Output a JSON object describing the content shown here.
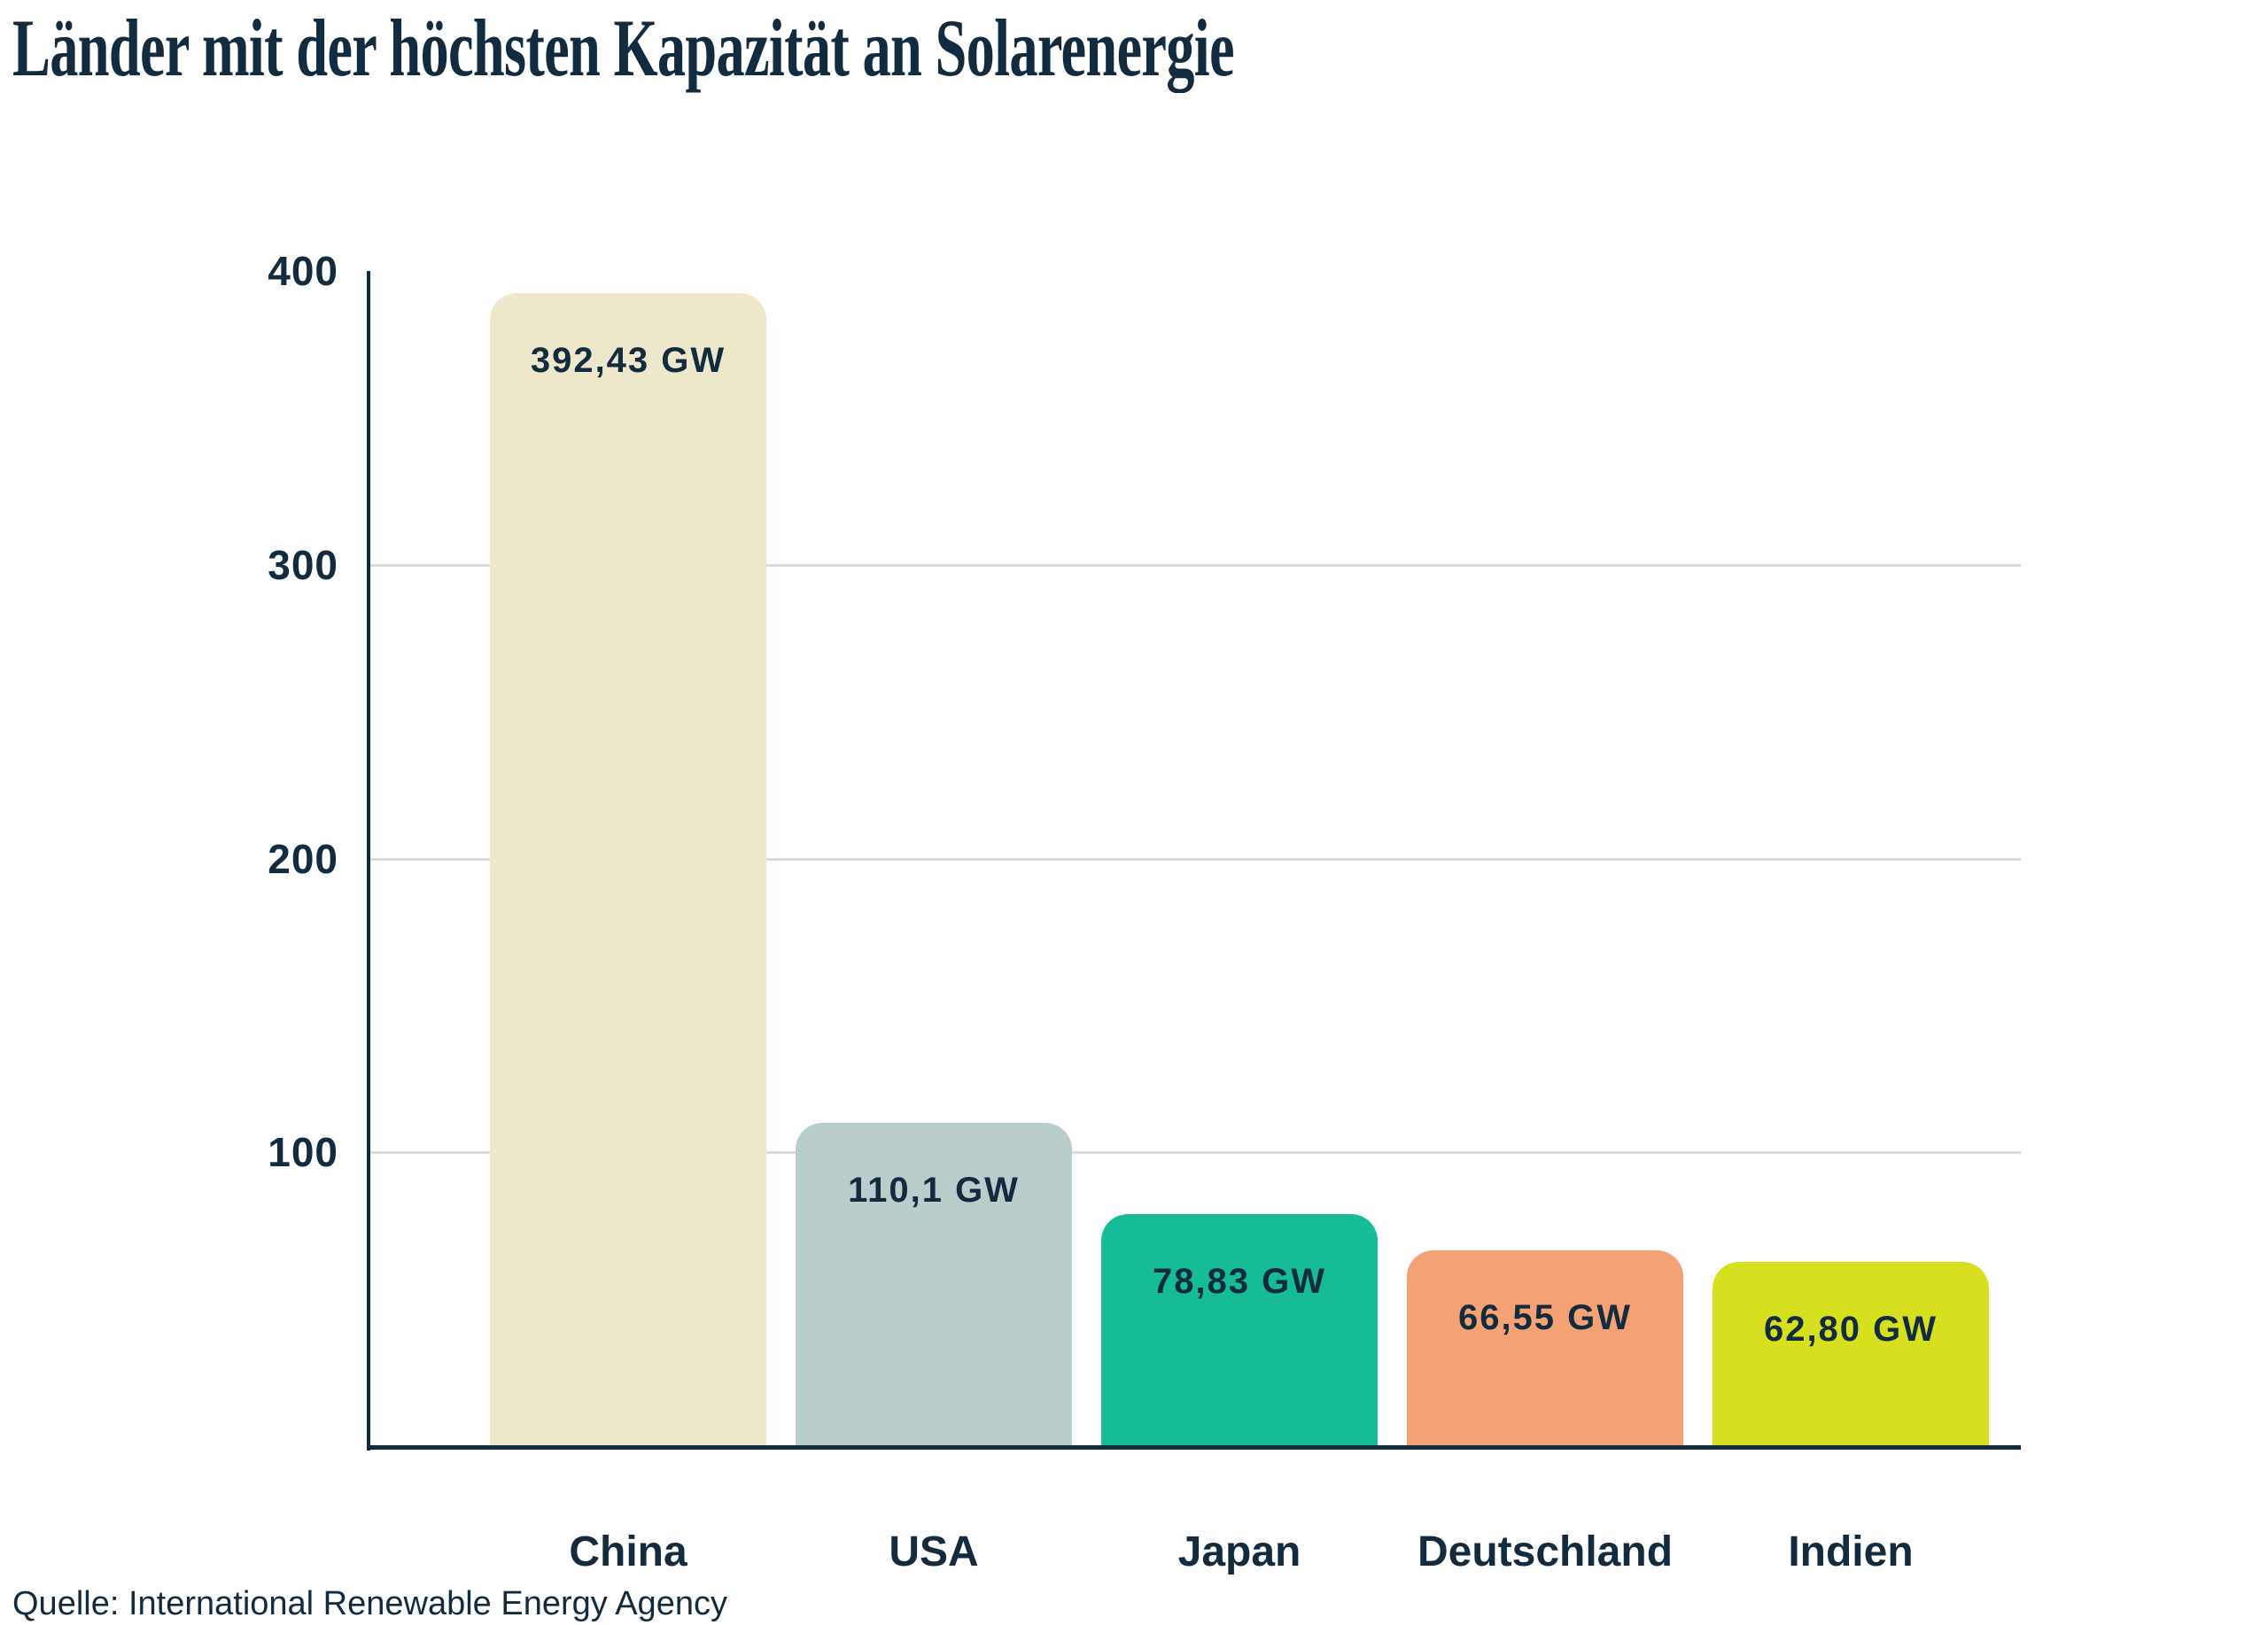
{
  "title": "Länder mit der höchsten Kapazität an Solarenergie",
  "source": "Quelle: International Renewable Energy Agency",
  "colors": {
    "text": "#122B3E",
    "axis": "#14293C",
    "grid": "#D8DCE1",
    "background": "#FFFFFF"
  },
  "chart_data": {
    "type": "bar",
    "title": "Länder mit der höchsten Kapazität an Solarenergie",
    "categories": [
      "China",
      "USA",
      "Japan",
      "Deutschland",
      "Indien"
    ],
    "values": [
      392.43,
      110.1,
      78.83,
      66.55,
      62.8
    ],
    "value_labels": [
      "392,43 GW",
      "110,1 GW",
      "78,83 GW",
      "66,55 GW",
      "62,80 GW"
    ],
    "bar_colors": [
      "#EDE7CB",
      "#B9CECB",
      "#16BC96",
      "#F4A274",
      "#D6E01E"
    ],
    "unit": "GW",
    "y_ticks": [
      400,
      300,
      200,
      100
    ],
    "ylim": [
      0,
      400
    ],
    "xlabel": "",
    "ylabel": "",
    "grid": "horizontal gridlines at 100, 200, 300 only",
    "legend": "none",
    "source": "Quelle: International Renewable Energy Agency"
  }
}
